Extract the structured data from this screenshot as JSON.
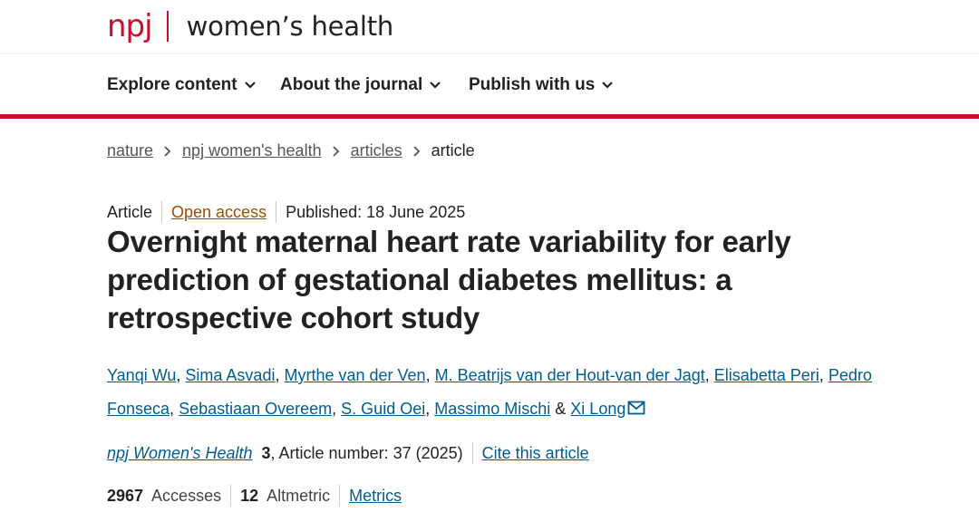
{
  "brand": {
    "logo_mark": "npj",
    "journal_name": "women’s health",
    "brand_color": "#c8102e"
  },
  "nav": {
    "items": [
      {
        "label": "Explore content"
      },
      {
        "label": "About the journal"
      },
      {
        "label": "Publish with us"
      }
    ]
  },
  "breadcrumb": {
    "items": [
      "nature",
      "npj women's health",
      "articles"
    ],
    "current": "article"
  },
  "article": {
    "type": "Article",
    "access": "Open access",
    "published": "Published: 18 June 2025",
    "title": "Overnight maternal heart rate variability for early prediction of gestational diabetes mellitus: a retrospective cohort study",
    "authors": [
      "Yanqi Wu",
      "Sima Asvadi",
      "Myrthe van der Ven",
      "M. Beatrijs van der Hout-van der Jagt",
      "Elisabetta Peri",
      "Pedro Fonseca",
      "Sebastiaan Overeem",
      "S. Guid Oei",
      "Massimo Mischi",
      "Xi Long"
    ],
    "author_and": "&",
    "citation": {
      "journal": "npj Women's Health",
      "volume": "3",
      "details": ", Article number: 37 (2025)",
      "cite_label": "Cite this article"
    },
    "metrics": {
      "accesses_value": "2967",
      "accesses_label": "Accesses",
      "altmetric_value": "12",
      "altmetric_label": "Altmetric",
      "metrics_link": "Metrics"
    }
  },
  "colors": {
    "link": "#005c8f",
    "open_access": "#a04b00",
    "text": "#222222"
  }
}
